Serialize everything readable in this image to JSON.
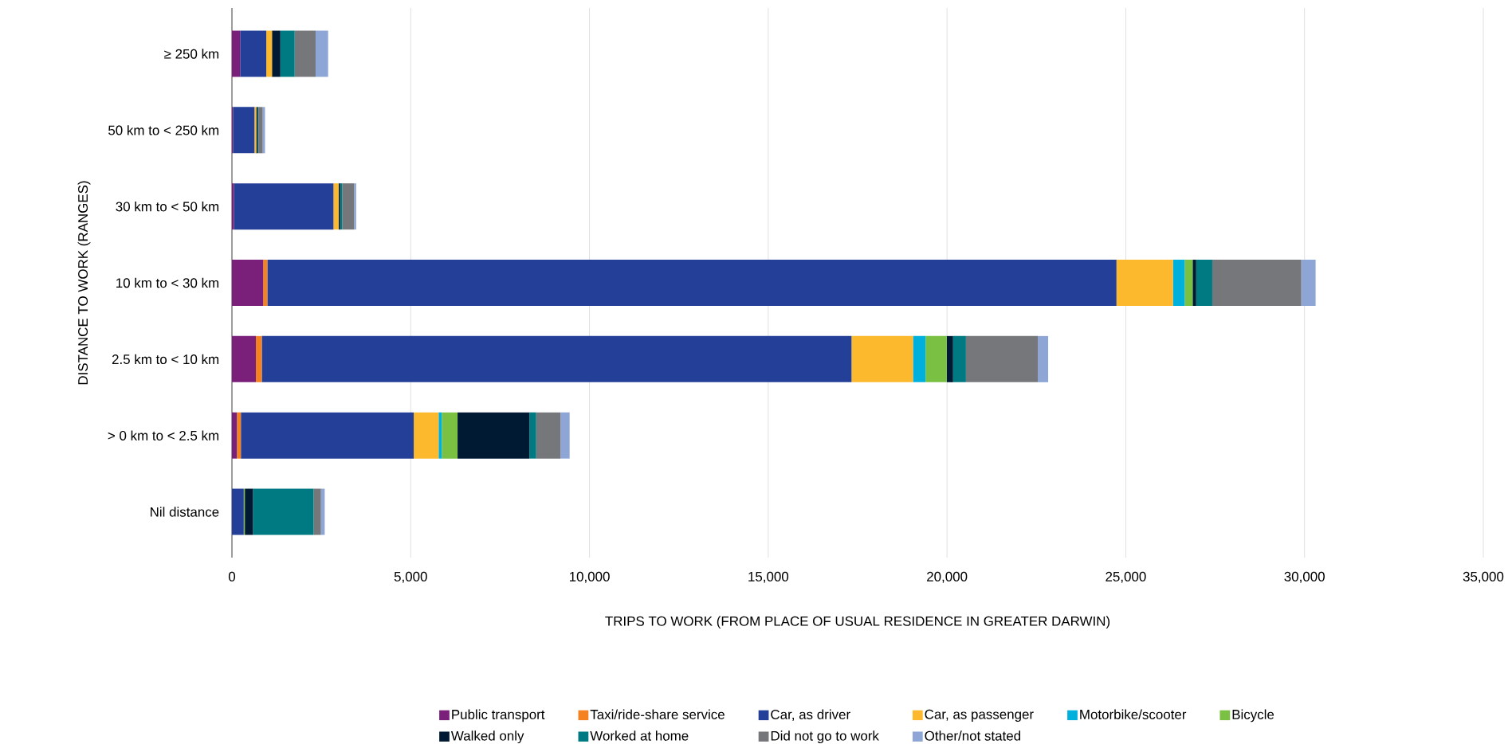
{
  "chart_data": {
    "type": "bar",
    "orientation": "horizontal",
    "stacked": true,
    "xlabel": "TRIPS TO WORK (FROM PLACE OF USUAL RESIDENCE IN GREATER DARWIN)",
    "ylabel": "DISTANCE TO WORK (RANGES)",
    "categories": [
      "≥ 250 km",
      "50 km to < 250 km",
      "30 km to < 50 km",
      "10 km to < 30 km",
      "2.5 km to < 10 km",
      "> 0 km to < 2.5 km",
      "Nil distance"
    ],
    "series": [
      {
        "name": "Public transport",
        "color": "#7a1f7a",
        "values": [
          230,
          30,
          55,
          875,
          670,
          140,
          0
        ]
      },
      {
        "name": "Taxi/ride-share service",
        "color": "#f58220",
        "values": [
          0,
          0,
          0,
          115,
          165,
          110,
          0
        ]
      },
      {
        "name": "Car, as driver",
        "color": "#233f97",
        "values": [
          730,
          600,
          2785,
          23750,
          16495,
          4835,
          330
        ]
      },
      {
        "name": "Car, as passenger",
        "color": "#fdb92e",
        "values": [
          160,
          50,
          145,
          1580,
          1720,
          695,
          0
        ]
      },
      {
        "name": "Motorbike/scooter",
        "color": "#00b0dc",
        "values": [
          0,
          0,
          0,
          330,
          350,
          90,
          0
        ]
      },
      {
        "name": "Bicycle",
        "color": "#7ac143",
        "values": [
          0,
          0,
          0,
          220,
          590,
          440,
          30
        ]
      },
      {
        "name": "Walked only",
        "color": "#001a33",
        "values": [
          235,
          35,
          40,
          100,
          180,
          2010,
          230
        ]
      },
      {
        "name": "Worked at home",
        "color": "#007a82",
        "values": [
          400,
          25,
          60,
          450,
          360,
          190,
          1695
        ]
      },
      {
        "name": "Did not go to work",
        "color": "#76777b",
        "values": [
          585,
          120,
          330,
          2490,
          2010,
          680,
          205
        ]
      },
      {
        "name": "Other/not stated",
        "color": "#8ea6d6",
        "values": [
          350,
          65,
          60,
          400,
          290,
          255,
          105
        ]
      }
    ],
    "xlim": [
      0,
      35000
    ],
    "xticks": [
      0,
      {
        "value": 5000,
        "label": "5,000"
      },
      {
        "value": 10000,
        "label": "10,000"
      },
      {
        "value": 15000,
        "label": "15,000"
      },
      {
        "value": 20000,
        "label": "20,000"
      },
      {
        "value": 25000,
        "label": "25,000"
      },
      {
        "value": 30000,
        "label": "30,000"
      },
      {
        "value": 35000,
        "label": "35,000"
      }
    ],
    "grid": "x",
    "legend": "bottom"
  }
}
